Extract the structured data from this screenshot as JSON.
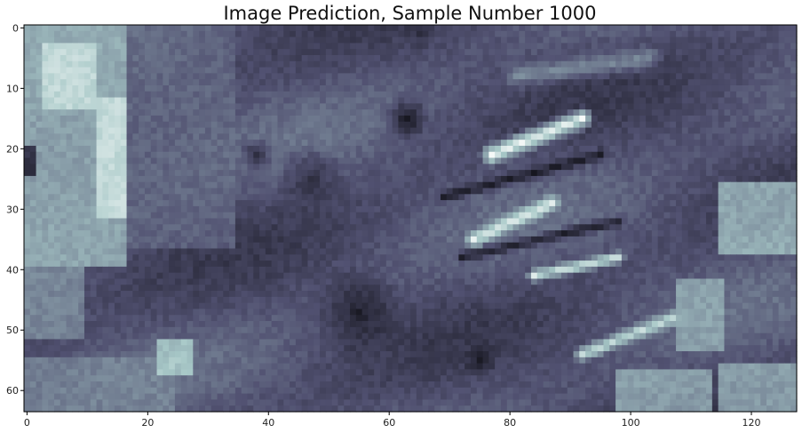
{
  "chart_data": {
    "type": "heatmap",
    "title": "Image Prediction, Sample Number 1000",
    "xlabel": "",
    "ylabel": "",
    "colormap": "bone",
    "image_shape": [
      64,
      128
    ],
    "xlim": [
      -0.5,
      127.5
    ],
    "ylim": [
      63.5,
      -0.5
    ],
    "x_ticks": [
      0,
      20,
      40,
      60,
      80,
      100,
      120
    ],
    "y_ticks": [
      0,
      10,
      20,
      30,
      40,
      50,
      60
    ],
    "features": [
      {
        "kind": "rect",
        "x": 0,
        "y": 0,
        "w": 17,
        "h": 40,
        "v": 0.72
      },
      {
        "kind": "rect",
        "x": 3,
        "y": 3,
        "w": 9,
        "h": 11,
        "v": 0.88
      },
      {
        "kind": "rect",
        "x": 12,
        "y": 12,
        "w": 5,
        "h": 20,
        "v": 0.9
      },
      {
        "kind": "rect",
        "x": 0,
        "y": 20,
        "w": 2,
        "h": 5,
        "v": 0.1
      },
      {
        "kind": "rect",
        "x": 17,
        "y": 0,
        "w": 18,
        "h": 37,
        "v": 0.45
      },
      {
        "kind": "rect",
        "x": 0,
        "y": 40,
        "w": 10,
        "h": 12,
        "v": 0.58
      },
      {
        "kind": "rect",
        "x": 0,
        "y": 55,
        "w": 25,
        "h": 9,
        "v": 0.55
      },
      {
        "kind": "rect",
        "x": 22,
        "y": 52,
        "w": 6,
        "h": 6,
        "v": 0.82
      },
      {
        "kind": "rect",
        "x": 115,
        "y": 26,
        "w": 13,
        "h": 12,
        "v": 0.75
      },
      {
        "kind": "rect",
        "x": 108,
        "y": 42,
        "w": 8,
        "h": 12,
        "v": 0.68
      },
      {
        "kind": "rect",
        "x": 115,
        "y": 56,
        "w": 13,
        "h": 8,
        "v": 0.7
      },
      {
        "kind": "rect",
        "x": 98,
        "y": 57,
        "w": 16,
        "h": 7,
        "v": 0.7
      },
      {
        "kind": "streak",
        "x1": 77,
        "y1": 21,
        "x2": 92,
        "y2": 15,
        "t": 2.2,
        "v": 0.95
      },
      {
        "kind": "streak",
        "x1": 74,
        "y1": 35,
        "x2": 87,
        "y2": 29,
        "t": 1.8,
        "v": 0.9
      },
      {
        "kind": "streak",
        "x1": 84,
        "y1": 41,
        "x2": 98,
        "y2": 38,
        "t": 1.4,
        "v": 0.88
      },
      {
        "kind": "streak",
        "x1": 92,
        "y1": 54,
        "x2": 107,
        "y2": 48,
        "t": 1.6,
        "v": 0.85
      },
      {
        "kind": "streak",
        "x1": 69,
        "y1": 28,
        "x2": 95,
        "y2": 21,
        "t": 1.3,
        "v": 0.12
      },
      {
        "kind": "streak",
        "x1": 72,
        "y1": 38,
        "x2": 98,
        "y2": 32,
        "t": 1.3,
        "v": 0.14
      },
      {
        "kind": "streak",
        "x1": 81,
        "y1": 8,
        "x2": 103,
        "y2": 5,
        "t": 2.5,
        "v": 0.55
      },
      {
        "kind": "blob",
        "x": 63,
        "y": 15,
        "r": 4,
        "v": 0.05
      },
      {
        "kind": "blob",
        "x": 55,
        "y": 47,
        "r": 8,
        "v": 0.12
      },
      {
        "kind": "blob",
        "x": 47,
        "y": 25,
        "r": 6,
        "v": 0.2
      },
      {
        "kind": "blob",
        "x": 65,
        "y": 1,
        "r": 3,
        "v": 0.22
      },
      {
        "kind": "blob",
        "x": 38,
        "y": 21,
        "r": 3,
        "v": 0.15
      },
      {
        "kind": "blob",
        "x": 75,
        "y": 55,
        "r": 3,
        "v": 0.1
      }
    ]
  }
}
